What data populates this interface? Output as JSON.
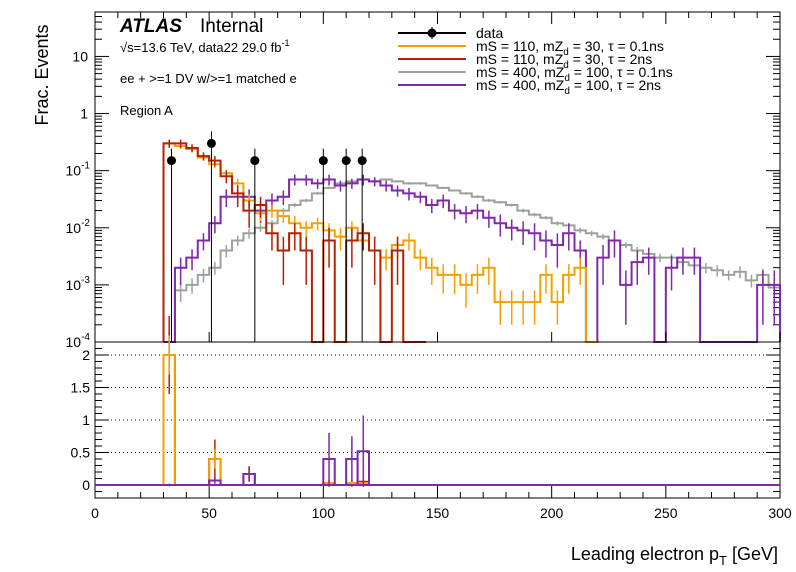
{
  "chart_data": {
    "type": "line",
    "x_axis": {
      "label": "Leading electron p_T [GeV]",
      "range": [
        0,
        300
      ],
      "ticks": [
        0,
        50,
        100,
        150,
        200,
        250,
        300
      ]
    },
    "top_panel": {
      "ylabel": "Frac. Events",
      "yscale": "log",
      "ylim": [
        0.0001,
        60
      ],
      "ticks": [
        {
          "v": 10,
          "base": "10",
          "exp": ""
        },
        {
          "v": 1,
          "base": "1",
          "exp": ""
        },
        {
          "v": 0.1,
          "base": "10",
          "exp": "-1"
        },
        {
          "v": 0.01,
          "base": "10",
          "exp": "-2"
        },
        {
          "v": 0.001,
          "base": "10",
          "exp": "-3"
        },
        {
          "v": 0.0001,
          "base": "10",
          "exp": "-4"
        }
      ]
    },
    "bottom_panel": {
      "ylim": [
        -0.2,
        2.2
      ],
      "ticks": [
        "0",
        "0.5",
        "1",
        "1.5",
        "2"
      ],
      "grid": [
        0.5,
        1.0,
        1.5,
        2.0
      ]
    },
    "annotations": {
      "atlas": "ATLAS",
      "internal": "Internal",
      "sqrt_s": "√s=13.6 TeV, data22 29.0 fb",
      "lumi_exp": "-1",
      "selection": "ee + >=1 DV w/>=1 matched e",
      "region": "Region A"
    },
    "legend": {
      "position": "top-right",
      "entries": [
        {
          "text": "data",
          "sub": "",
          "tail": "",
          "color": "#000000"
        },
        {
          "text": "mS = 110, mZ",
          "sub": "d",
          "tail": " = 30, τ = 0.1ns",
          "color": "#f5a000"
        },
        {
          "text": "mS = 110, mZ",
          "sub": "d",
          "tail": " = 30, τ = 2ns",
          "color": "#b32200"
        },
        {
          "text": "mS = 400, mZ",
          "sub": "d",
          "tail": " = 100, τ = 0.1ns",
          "color": "#9aa39a"
        },
        {
          "text": "mS = 400, mZ",
          "sub": "d",
          "tail": " = 100, τ = 2ns",
          "color": "#7f28a8"
        }
      ]
    },
    "bin_width": 5,
    "series": [
      {
        "name": "mS = 400, mZd = 100, τ = 0.1ns",
        "color": "#9aa39a",
        "x": [
          30,
          35,
          40,
          45,
          50,
          55,
          60,
          65,
          70,
          75,
          80,
          85,
          90,
          95,
          100,
          105,
          110,
          115,
          120,
          125,
          130,
          135,
          140,
          145,
          150,
          155,
          160,
          165,
          170,
          175,
          180,
          185,
          190,
          195,
          200,
          205,
          210,
          215,
          220,
          225,
          230,
          235,
          240,
          245,
          250,
          255,
          260,
          265,
          270,
          275,
          280,
          285,
          290,
          295
        ],
        "values": [
          0.0001,
          0.0008,
          0.001,
          0.0015,
          0.002,
          0.004,
          0.006,
          0.008,
          0.01,
          0.012,
          0.02,
          0.025,
          0.03,
          0.04,
          0.05,
          0.06,
          0.065,
          0.07,
          0.065,
          0.07,
          0.065,
          0.06,
          0.06,
          0.055,
          0.05,
          0.045,
          0.04,
          0.035,
          0.03,
          0.028,
          0.025,
          0.02,
          0.017,
          0.015,
          0.012,
          0.011,
          0.009,
          0.008,
          0.007,
          0.006,
          0.005,
          0.004,
          0.0035,
          0.003,
          0.003,
          0.0025,
          0.0022,
          0.002,
          0.0018,
          0.0015,
          0.0017,
          0.0012,
          0.0015,
          0.0009
        ],
        "errors": [
          5e-05,
          0.0003,
          0.0003,
          0.0004,
          0.0005,
          0.001,
          0.0012,
          0.0015,
          0.0015,
          0.0015,
          0.002,
          0.002,
          0.002,
          0.002,
          0.0025,
          0.003,
          0.003,
          0.003,
          0.003,
          0.003,
          0.003,
          0.003,
          0.003,
          0.002,
          0.002,
          0.002,
          0.002,
          0.002,
          0.002,
          0.0015,
          0.0015,
          0.0015,
          0.0012,
          0.001,
          0.001,
          0.001,
          0.001,
          0.0008,
          0.0008,
          0.0007,
          0.0006,
          0.0006,
          0.0005,
          0.0005,
          0.0005,
          0.0004,
          0.0004,
          0.0004,
          0.0004,
          0.0003,
          0.0004,
          0.0003,
          0.0004,
          0.0003
        ]
      },
      {
        "name": "mS = 400, mZd = 100, τ = 2ns",
        "color": "#7f28a8",
        "x": [
          30,
          35,
          40,
          45,
          50,
          55,
          60,
          65,
          70,
          75,
          80,
          85,
          90,
          95,
          100,
          105,
          110,
          115,
          120,
          125,
          130,
          135,
          140,
          145,
          150,
          155,
          160,
          165,
          170,
          175,
          180,
          185,
          190,
          195,
          200,
          205,
          210,
          215,
          220,
          225,
          230,
          235,
          240,
          245,
          250,
          255,
          260,
          265,
          270,
          275,
          280,
          285,
          290,
          295
        ],
        "values": [
          0.0001,
          0.002,
          0.003,
          0.006,
          0.012,
          0.035,
          0.035,
          0.035,
          0.02,
          0.03,
          0.035,
          0.07,
          0.07,
          0.06,
          0.07,
          0.055,
          0.06,
          0.07,
          0.065,
          0.055,
          0.045,
          0.04,
          0.035,
          0.025,
          0.03,
          0.02,
          0.018,
          0.02,
          0.015,
          0.012,
          0.01,
          0.009,
          0.008,
          0.006,
          0.005,
          0.008,
          0.004,
          0.0001,
          0.003,
          0.006,
          0.001,
          0.0025,
          0.003,
          0.0001,
          0.002,
          0.003,
          0.003,
          0.0001,
          0.0001,
          0.0001,
          0.0001,
          0.0001,
          0.001,
          0.001
        ],
        "errors": [
          5e-05,
          0.001,
          0.0012,
          0.002,
          0.004,
          0.012,
          0.012,
          0.012,
          0.008,
          0.01,
          0.01,
          0.015,
          0.015,
          0.012,
          0.015,
          0.012,
          0.012,
          0.015,
          0.012,
          0.012,
          0.01,
          0.01,
          0.008,
          0.007,
          0.008,
          0.006,
          0.006,
          0.006,
          0.005,
          0.005,
          0.004,
          0.004,
          0.004,
          0.003,
          0.003,
          0.004,
          0.002,
          0,
          0.002,
          0.003,
          0.0008,
          0.0015,
          0.0015,
          0,
          0.0012,
          0.0015,
          0.0015,
          0,
          0,
          0,
          0,
          0,
          0.0008,
          0.0008
        ]
      },
      {
        "name": "mS = 110, mZd = 30, τ = 0.1ns",
        "color": "#f5a000",
        "x": [
          30,
          35,
          40,
          45,
          50,
          55,
          60,
          65,
          70,
          75,
          80,
          85,
          90,
          95,
          100,
          105,
          110,
          115,
          120,
          125,
          130,
          135,
          140,
          145,
          150,
          155,
          160,
          165,
          170,
          175,
          180,
          185,
          190,
          195,
          200,
          205,
          210,
          215
        ],
        "values": [
          0.3,
          0.27,
          0.24,
          0.17,
          0.13,
          0.09,
          0.06,
          0.03,
          0.018,
          0.02,
          0.016,
          0.012,
          0.01,
          0.012,
          0.009,
          0.007,
          0.01,
          0.006,
          0.004,
          0.003,
          0.005,
          0.006,
          0.003,
          0.002,
          0.0015,
          0.0015,
          0.001,
          0.0015,
          0.002,
          0.0005,
          0.0005,
          0.0005,
          0.0005,
          0.0015,
          0.0005,
          0.0015,
          0.002,
          0.0001
        ],
        "errors": [
          0.03,
          0.03,
          0.03,
          0.02,
          0.02,
          0.015,
          0.012,
          0.008,
          0.005,
          0.005,
          0.004,
          0.004,
          0.003,
          0.003,
          0.003,
          0.003,
          0.003,
          0.002,
          0.0015,
          0.0012,
          0.002,
          0.002,
          0.0012,
          0.001,
          0.0008,
          0.0008,
          0.0006,
          0.0008,
          0.001,
          0.0003,
          0.0003,
          0.0003,
          0.0003,
          0.0008,
          0.0003,
          0.0008,
          0.001,
          0
        ]
      },
      {
        "name": "mS = 110, mZd = 30, τ = 2ns",
        "color": "#b32200",
        "x": [
          30,
          35,
          40,
          45,
          50,
          55,
          60,
          65,
          70,
          75,
          80,
          85,
          90,
          95,
          100,
          105,
          110,
          115,
          120,
          125,
          130,
          135,
          140
        ],
        "values": [
          0.3,
          0.3,
          0.25,
          0.18,
          0.15,
          0.08,
          0.04,
          0.02,
          0.025,
          0.008,
          0.004,
          0.008,
          0.004,
          0.0001,
          0.006,
          0.0001,
          0.006,
          0.008,
          0.004,
          0.0001,
          0.004,
          0.0001,
          0.0001
        ],
        "errors": [
          0.05,
          0.05,
          0.04,
          0.03,
          0.03,
          0.02,
          0.015,
          0.01,
          0.01,
          0.004,
          0.003,
          0.004,
          0.003,
          0,
          0.004,
          0,
          0.004,
          0.004,
          0.003,
          0,
          0.003,
          0,
          0
        ]
      },
      {
        "name": "data",
        "type": "points",
        "color": "#000000",
        "x": [
          33.5,
          51,
          70,
          100,
          110,
          117
        ],
        "values": [
          0.15,
          0.3,
          0.15,
          0.15,
          0.15,
          0.15
        ]
      }
    ],
    "ratio_series": [
      {
        "name": "mS = 110, mZd = 30, τ = 2ns",
        "color": "#b32200",
        "x": [
          30,
          50,
          65,
          100,
          110,
          115
        ],
        "values": [
          2.0,
          0.4,
          0.17,
          0.02,
          0.02,
          0.05
        ],
        "errors": [
          0.6,
          0.3,
          0.12,
          0.05,
          0.05,
          0.05
        ]
      },
      {
        "name": "mS = 110, mZd = 30, τ = 0.1ns",
        "color": "#f5a000",
        "x": [
          30,
          50,
          65,
          100,
          110,
          115
        ],
        "values": [
          2.0,
          0.4,
          0.17,
          0.03,
          0.03,
          0.03
        ],
        "errors": [
          0.3,
          0.15,
          0.08,
          0.05,
          0.05,
          0.05
        ]
      },
      {
        "name": "mS = 400, mZd = 100, τ = 2ns",
        "color": "#7f28a8",
        "x": [
          30,
          50,
          65,
          100,
          110,
          115
        ],
        "values": [
          0.0,
          0.07,
          0.17,
          0.4,
          0.4,
          0.52
        ],
        "errors": [
          0.02,
          0.05,
          0.1,
          0.4,
          0.35,
          0.55
        ]
      }
    ]
  }
}
